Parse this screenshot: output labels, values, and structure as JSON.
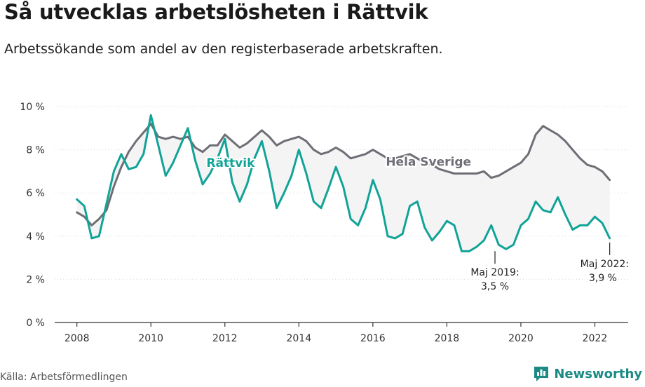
{
  "header": {
    "title": "Så utvecklas arbetslösheten i Rättvik",
    "subtitle": "Arbetssökande som andel av den registerbaserade arbetskraften."
  },
  "footer": {
    "source": "Källa: Arbetsförmedlingen",
    "brand": "Newsworthy"
  },
  "colors": {
    "local": "#12a398",
    "national": "#6e6e76",
    "fill": "#f4f4f4",
    "grid": "#d9d9d9",
    "brand": "#1b8a84"
  },
  "icons": {
    "brand": "bar-chart-speech-bubble-icon"
  },
  "chart_data": {
    "type": "line",
    "ylim": [
      0,
      10
    ],
    "xlim": [
      2007.4,
      2022.9
    ],
    "yticks": [
      0,
      2,
      4,
      6,
      8,
      10
    ],
    "ytick_labels": [
      "0 %",
      "2 %",
      "4 %",
      "6 %",
      "8 %",
      "10 %"
    ],
    "xticks": [
      2008,
      2010,
      2012,
      2014,
      2016,
      2018,
      2020,
      2022
    ],
    "xtick_labels": [
      "2008",
      "2010",
      "2012",
      "2014",
      "2016",
      "2018",
      "2020",
      "2022"
    ],
    "grid": "horizontal",
    "series": [
      {
        "name": "Hela Sverige",
        "x": [
          2008.0,
          2008.2,
          2008.4,
          2008.6,
          2008.8,
          2009.0,
          2009.2,
          2009.4,
          2009.6,
          2009.8,
          2010.0,
          2010.2,
          2010.4,
          2010.6,
          2010.8,
          2011.0,
          2011.2,
          2011.4,
          2011.6,
          2011.8,
          2012.0,
          2012.2,
          2012.4,
          2012.6,
          2012.8,
          2013.0,
          2013.2,
          2013.4,
          2013.6,
          2013.8,
          2014.0,
          2014.2,
          2014.4,
          2014.6,
          2014.8,
          2015.0,
          2015.2,
          2015.4,
          2015.6,
          2015.8,
          2016.0,
          2016.2,
          2016.4,
          2016.6,
          2016.8,
          2017.0,
          2017.2,
          2017.4,
          2017.6,
          2017.8,
          2018.0,
          2018.2,
          2018.4,
          2018.6,
          2018.8,
          2019.0,
          2019.2,
          2019.4,
          2019.6,
          2019.8,
          2020.0,
          2020.2,
          2020.4,
          2020.6,
          2020.8,
          2021.0,
          2021.2,
          2021.4,
          2021.6,
          2021.8,
          2022.0,
          2022.2,
          2022.4
        ],
        "values": [
          5.1,
          4.9,
          4.5,
          4.8,
          5.2,
          6.3,
          7.2,
          7.9,
          8.4,
          8.8,
          9.2,
          8.6,
          8.5,
          8.6,
          8.5,
          8.6,
          8.1,
          7.9,
          8.2,
          8.2,
          8.7,
          8.4,
          8.1,
          8.3,
          8.6,
          8.9,
          8.6,
          8.2,
          8.4,
          8.5,
          8.6,
          8.4,
          8.0,
          7.8,
          7.9,
          8.1,
          7.9,
          7.6,
          7.7,
          7.8,
          8.0,
          7.8,
          7.6,
          7.6,
          7.7,
          7.8,
          7.6,
          7.4,
          7.3,
          7.1,
          7.0,
          6.9,
          6.9,
          6.9,
          6.9,
          7.0,
          6.7,
          6.8,
          7.0,
          7.2,
          7.4,
          7.8,
          8.7,
          9.1,
          8.9,
          8.7,
          8.4,
          8.0,
          7.6,
          7.3,
          7.2,
          7.0,
          6.6
        ]
      },
      {
        "name": "Rättvik",
        "x": [
          2008.0,
          2008.2,
          2008.4,
          2008.6,
          2008.8,
          2009.0,
          2009.2,
          2009.4,
          2009.6,
          2009.8,
          2010.0,
          2010.2,
          2010.4,
          2010.6,
          2010.8,
          2011.0,
          2011.2,
          2011.4,
          2011.6,
          2011.8,
          2012.0,
          2012.2,
          2012.4,
          2012.6,
          2012.8,
          2013.0,
          2013.2,
          2013.4,
          2013.6,
          2013.8,
          2014.0,
          2014.2,
          2014.4,
          2014.6,
          2014.8,
          2015.0,
          2015.2,
          2015.4,
          2015.6,
          2015.8,
          2016.0,
          2016.2,
          2016.4,
          2016.6,
          2016.8,
          2017.0,
          2017.2,
          2017.4,
          2017.6,
          2017.8,
          2018.0,
          2018.2,
          2018.4,
          2018.6,
          2018.8,
          2019.0,
          2019.2,
          2019.4,
          2019.6,
          2019.8,
          2020.0,
          2020.2,
          2020.4,
          2020.6,
          2020.8,
          2021.0,
          2021.2,
          2021.4,
          2021.6,
          2021.8,
          2022.0,
          2022.2,
          2022.4
        ],
        "values": [
          5.7,
          5.4,
          3.9,
          4.0,
          5.5,
          7.0,
          7.8,
          7.1,
          7.2,
          7.8,
          9.6,
          8.2,
          6.8,
          7.4,
          8.2,
          9.0,
          7.5,
          6.4,
          6.9,
          7.6,
          8.5,
          6.5,
          5.6,
          6.4,
          7.6,
          8.4,
          7.0,
          5.3,
          6.0,
          6.8,
          8.0,
          6.9,
          5.6,
          5.3,
          6.2,
          7.2,
          6.3,
          4.8,
          4.5,
          5.3,
          6.6,
          5.7,
          4.0,
          3.9,
          4.1,
          5.4,
          5.6,
          4.4,
          3.8,
          4.2,
          4.7,
          4.5,
          3.3,
          3.3,
          3.5,
          3.8,
          4.5,
          3.6,
          3.4,
          3.6,
          4.5,
          4.8,
          5.6,
          5.2,
          5.1,
          5.8,
          5.0,
          4.3,
          4.5,
          4.5,
          4.9,
          4.6,
          3.9
        ]
      }
    ],
    "series_labels": [
      "Hela Sverige",
      "Rättvik"
    ],
    "annotations": [
      {
        "x": 2019.3,
        "y": 3.5,
        "line1": "Maj 2019:",
        "line2": "3,5 %"
      },
      {
        "x": 2022.4,
        "y": 3.9,
        "line1": "Maj 2022:",
        "line2": "3,9 %"
      }
    ]
  }
}
